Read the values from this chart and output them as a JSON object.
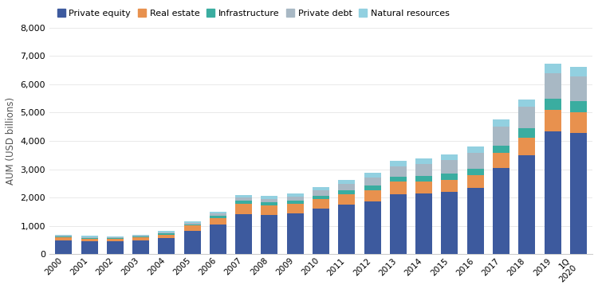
{
  "years": [
    "2000",
    "2001",
    "2002",
    "2003",
    "2004",
    "2005",
    "2006",
    "2007",
    "2008",
    "2009",
    "2010",
    "2011",
    "2012",
    "2013",
    "2014",
    "2015",
    "2016",
    "2017",
    "2018",
    "2019",
    "1Q\n2020"
  ],
  "private_equity": [
    500,
    470,
    470,
    500,
    580,
    840,
    1050,
    1430,
    1380,
    1450,
    1620,
    1750,
    1880,
    2130,
    2150,
    2200,
    2330,
    3050,
    3500,
    4350,
    4280
  ],
  "real_estate": [
    100,
    90,
    85,
    95,
    120,
    170,
    240,
    360,
    350,
    320,
    320,
    360,
    390,
    430,
    420,
    430,
    460,
    520,
    620,
    750,
    730
  ],
  "infrastructure": [
    30,
    28,
    28,
    30,
    38,
    48,
    65,
    95,
    105,
    115,
    125,
    145,
    155,
    175,
    190,
    215,
    235,
    275,
    320,
    400,
    395
  ],
  "private_debt": [
    28,
    28,
    28,
    30,
    38,
    55,
    80,
    110,
    120,
    140,
    185,
    225,
    285,
    370,
    430,
    490,
    560,
    660,
    760,
    900,
    870
  ],
  "natural_resources": [
    38,
    33,
    28,
    32,
    42,
    57,
    75,
    100,
    105,
    115,
    130,
    148,
    158,
    180,
    190,
    200,
    215,
    250,
    275,
    320,
    330
  ],
  "colors": {
    "private_equity": "#3d5a9e",
    "real_estate": "#e8914e",
    "infrastructure": "#3aada0",
    "private_debt": "#a8b8c4",
    "natural_resources": "#92d0e0"
  },
  "legend_labels": [
    "Private equity",
    "Real estate",
    "Infrastructure",
    "Private debt",
    "Natural resources"
  ],
  "ylabel": "AUM (USD billions)",
  "ylim": [
    0,
    8000
  ],
  "yticks": [
    0,
    1000,
    2000,
    3000,
    4000,
    5000,
    6000,
    7000,
    8000
  ],
  "background_color": "#ffffff"
}
